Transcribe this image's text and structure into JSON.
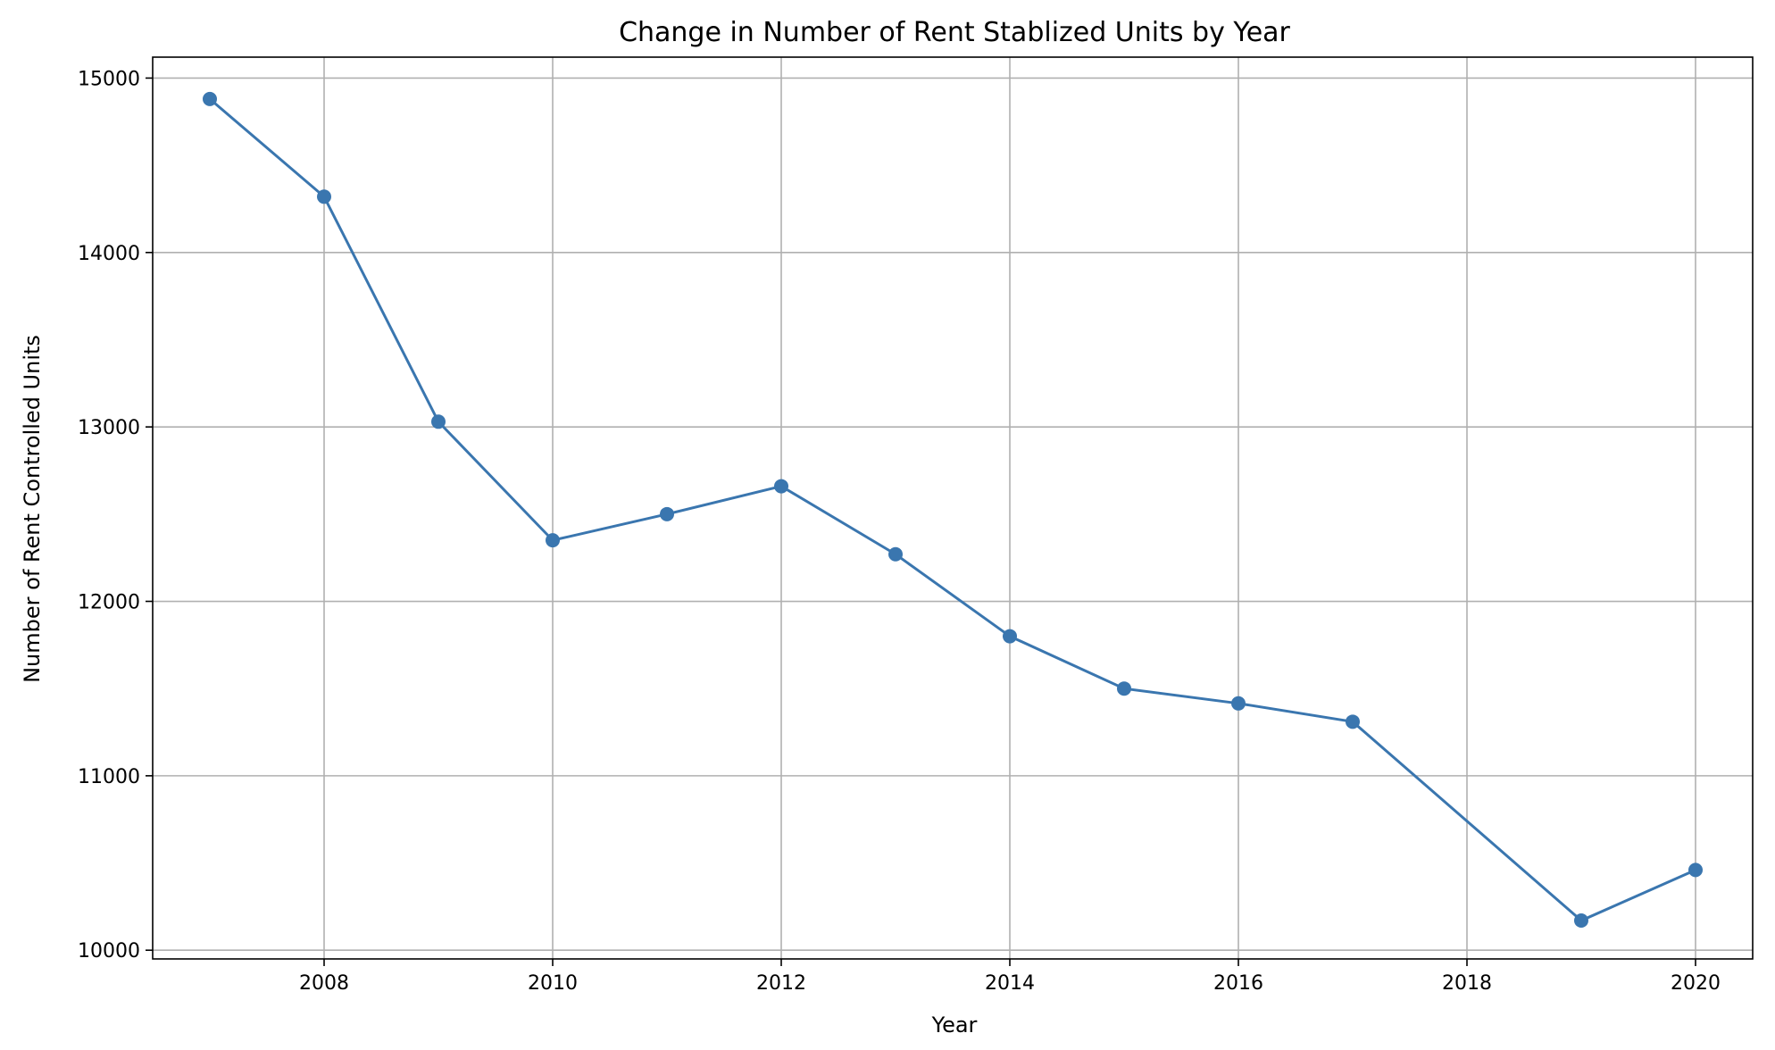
{
  "chart_data": {
    "type": "line",
    "title": "Change in Number of Rent Stablized Units by Year",
    "xlabel": "Year",
    "ylabel": "Number of Rent Controlled Units",
    "xlim": [
      2006.5,
      2020.5
    ],
    "ylim": [
      9950,
      15120
    ],
    "xticks": [
      2008,
      2010,
      2012,
      2014,
      2016,
      2018,
      2020
    ],
    "yticks": [
      10000,
      11000,
      12000,
      13000,
      14000,
      15000
    ],
    "grid": true,
    "line_color": "#3a76af",
    "series": [
      {
        "x": [
          2007,
          2008,
          2009,
          2010,
          2011,
          2012,
          2013,
          2014,
          2015,
          2016,
          2017,
          2019,
          2020
        ],
        "values": [
          14880,
          14320,
          13030,
          12350,
          12500,
          12660,
          12270,
          11800,
          11500,
          11415,
          11310,
          10170,
          10460
        ]
      }
    ]
  }
}
